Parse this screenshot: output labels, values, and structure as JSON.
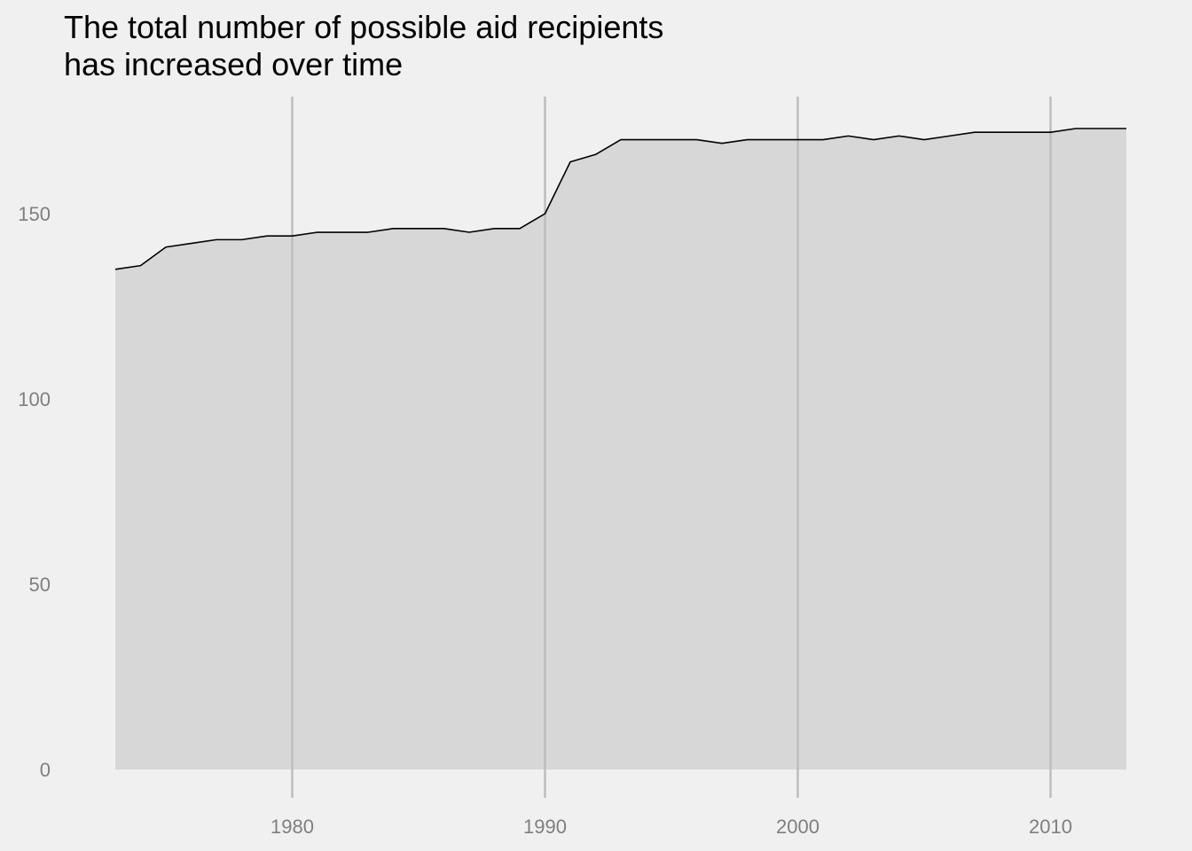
{
  "chart_data": {
    "type": "area",
    "title_lines": [
      "The total number of possible aid recipients",
      "has increased over time"
    ],
    "xlabel": "",
    "ylabel": "",
    "x": [
      1973,
      1974,
      1975,
      1976,
      1977,
      1978,
      1979,
      1980,
      1981,
      1982,
      1983,
      1984,
      1985,
      1986,
      1987,
      1988,
      1989,
      1990,
      1991,
      1992,
      1993,
      1994,
      1995,
      1996,
      1997,
      1998,
      1999,
      2000,
      2001,
      2002,
      2003,
      2004,
      2005,
      2006,
      2007,
      2008,
      2009,
      2010,
      2011,
      2012,
      2013
    ],
    "values": [
      135,
      136,
      141,
      142,
      143,
      143,
      144,
      144,
      145,
      145,
      145,
      146,
      146,
      146,
      145,
      146,
      146,
      150,
      164,
      166,
      170,
      170,
      170,
      170,
      169,
      170,
      170,
      170,
      170,
      171,
      170,
      171,
      170,
      171,
      172,
      172,
      172,
      172,
      173,
      173,
      173
    ],
    "xlim": [
      1973,
      2013
    ],
    "ylim": [
      0,
      173
    ],
    "x_ticks": [
      1980,
      1990,
      2000,
      2010
    ],
    "y_ticks": [
      0,
      50,
      100,
      150
    ],
    "grid": {
      "vertical_major": true,
      "horizontal": false
    },
    "colors": {
      "background": "#f0f0f0",
      "area_fill": "#d7d7d7",
      "line": "#000000",
      "grid": "#bdbdbd",
      "tick_text": "#7f7f7f"
    }
  }
}
